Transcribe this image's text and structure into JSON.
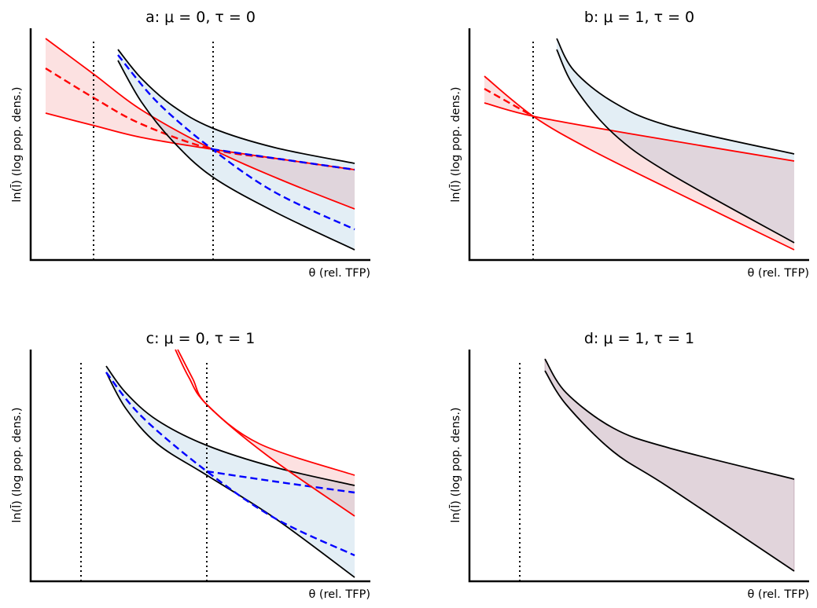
{
  "panels": [
    {
      "title": "a: μ = 0, τ = 0",
      "xlabel": "θ (rel. TFP)",
      "ylabel": "ln(l̄) (log pop. dens.)"
    },
    {
      "title": "b: μ = 1, τ = 0",
      "xlabel": "θ (rel. TFP)",
      "ylabel": "ln(l̄) (log pop. dens.)"
    },
    {
      "title": "c: μ = 0, τ = 1",
      "xlabel": "θ (rel. TFP)",
      "ylabel": "ln(l̄) (log pop. dens.)"
    },
    {
      "title": "d: μ = 1, τ = 1",
      "xlabel": "θ (rel. TFP)",
      "ylabel": "ln(l̄) (log pop. dens.)"
    }
  ],
  "colors": {
    "red": "#ff0000",
    "blue": "#0000ff",
    "black": "#000000",
    "red_fill": "#f9e0e0",
    "blue_fill": "#e3eef5",
    "overlap_fill": "#e0d5dc"
  }
}
